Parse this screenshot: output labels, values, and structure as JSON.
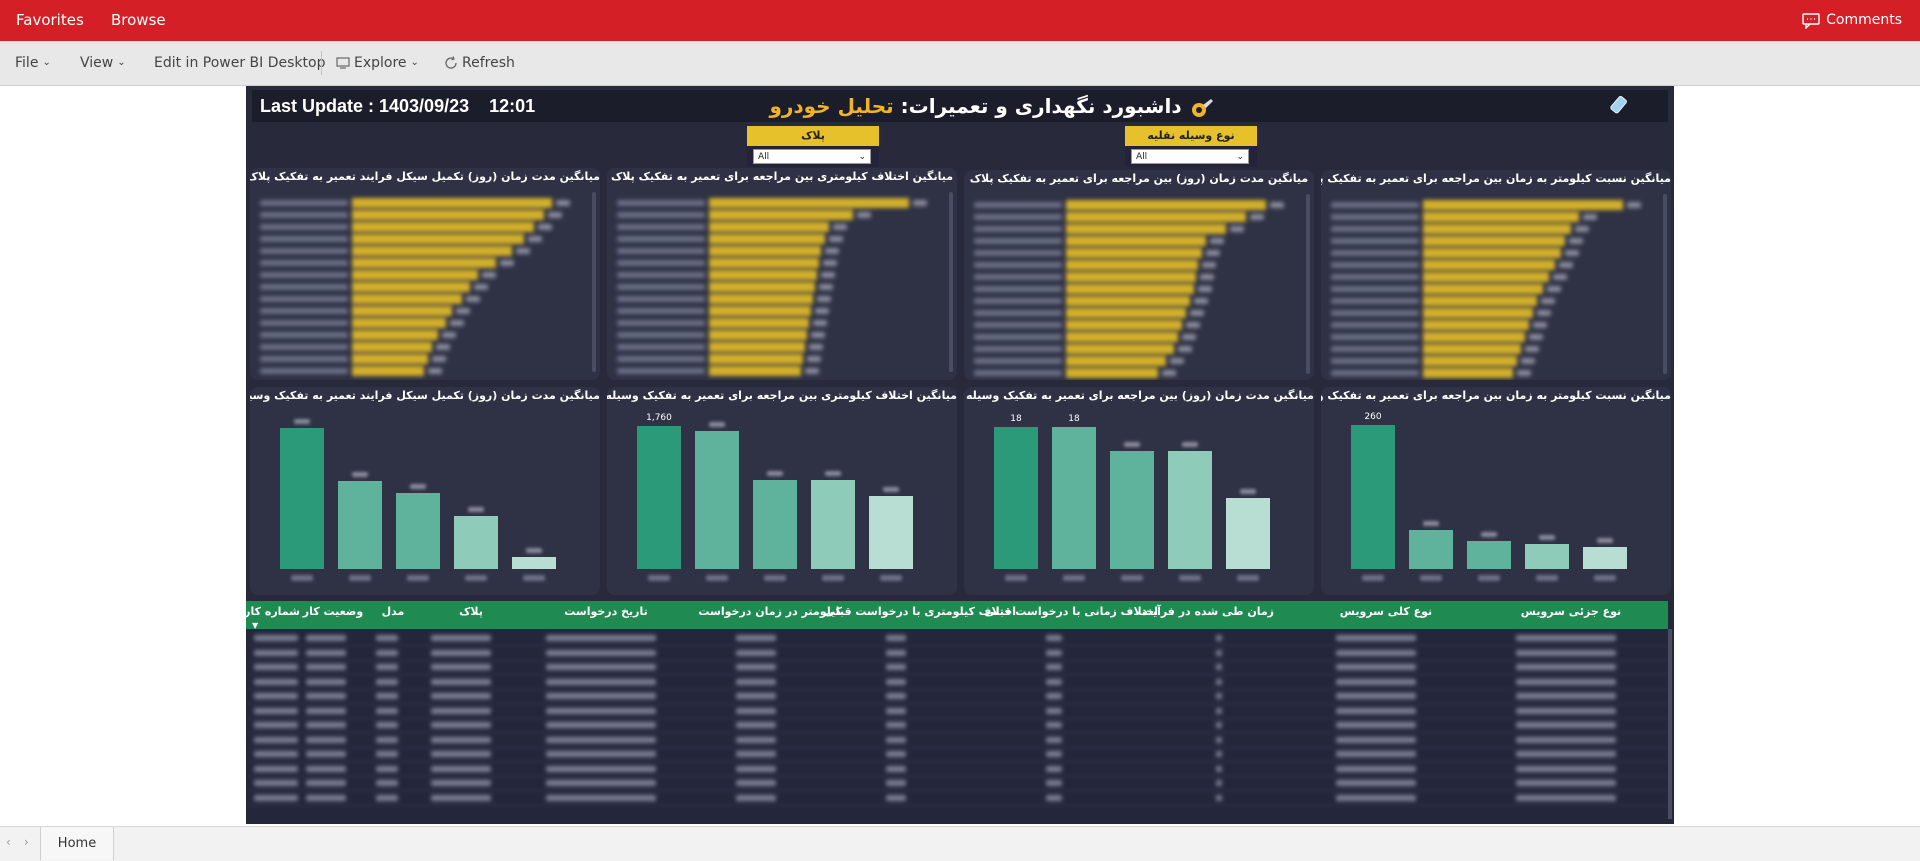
{
  "topbar": {
    "favorites": "Favorites",
    "browse": "Browse",
    "comments": "Comments"
  },
  "toolbar": {
    "file": "File",
    "view": "View",
    "edit_desktop": "Edit in Power BI Desktop",
    "explore": "Explore",
    "refresh": "Refresh"
  },
  "report": {
    "last_update_label": "Last Update : 1403/09/23",
    "last_update_time": "12:01",
    "title_main": "داشبورد نگهداری و تعمیرات:",
    "title_accent": "تحلیل خودرو",
    "slicers": [
      {
        "title": "پلاک",
        "value": "All"
      },
      {
        "title": "نوع وسیله نقلیه",
        "value": "All"
      }
    ],
    "top_panels": [
      "میانگین مدت زمان (روز) تکمیل سیکل فرایند تعمیر به تفکیک پلاک",
      "میانگین اختلاف کیلومتری بین مراجعه برای تعمیر به تفکیک پلاک",
      "میانگین مدت زمان (روز) بین مراجعه برای تعمیر به تفکیک پلاک",
      "میانگین نسبت کیلومتر به زمان بین مراجعه برای تعمیر به تفکیک پلاک"
    ],
    "bottom_panels": [
      "میانگین مدت زمان (روز) تکمیل سیکل فرایند تعمیر به تفکیک وسیله نقلیه",
      "میانگین اختلاف کیلومتری بین مراجعه برای تعمیر به تفکیک وسیله نقلیه",
      "میانگین مدت زمان (روز) بین مراجعه برای تعمیر به تفکیک وسیله نقلیه",
      "میانگین نسبت کیلومتر به زمان بین مراجعه برای تعمیر به تفکیک وسیله نقلیه"
    ],
    "colors": {
      "bar_gold": "#d4b12a",
      "green1": "#2a9a78",
      "green2": "#5fb29b",
      "green3": "#8fcbb9",
      "green4": "#b8ddd2",
      "header_green": "#1f8a52"
    }
  },
  "table": {
    "columns": [
      "شماره کار",
      "وضعیت کار",
      "مدل",
      "پلاک",
      "تاریخ درخواست",
      "کیلومتر در زمان درخواست",
      "اختلاف کیلومتری با درخواست قبلی",
      "اختلاف زمانی با درخواست قبلی",
      "زمان طی شده در فرآیند",
      "نوع کلی سرویس",
      "نوع جزئی سرویس"
    ]
  },
  "chart_data": [
    {
      "type": "bar",
      "title": "میانگین مدت زمان (روز) تکمیل سیکل فرایند تعمیر به تفکیک پلاک",
      "orientation": "horizontal",
      "values": [
        100,
        96,
        91,
        86,
        80,
        72,
        63,
        59,
        55,
        50,
        47,
        43,
        40,
        38,
        36
      ],
      "xlim": [
        0,
        100
      ]
    },
    {
      "type": "bar",
      "title": "میانگین اختلاف کیلومتری بین مراجعه برای تعمیر به تفکیک پلاک",
      "orientation": "horizontal",
      "values": [
        100,
        72,
        60,
        58,
        56,
        55,
        54,
        53,
        52,
        51,
        50,
        49,
        48,
        47,
        46
      ],
      "xlim": [
        0,
        100
      ]
    },
    {
      "type": "bar",
      "title": "میانگین مدت زمان (روز) بین مراجعه برای تعمیر به تفکیک پلاک",
      "orientation": "horizontal",
      "values": [
        100,
        90,
        80,
        70,
        68,
        66,
        65,
        64,
        62,
        60,
        58,
        56,
        54,
        50,
        46
      ],
      "xlim": [
        0,
        100
      ]
    },
    {
      "type": "bar",
      "title": "میانگین نسبت کیلومتر به زمان بین مراجعه برای تعمیر به تفکیک پلاک",
      "orientation": "horizontal",
      "values": [
        100,
        78,
        74,
        71,
        69,
        66,
        63,
        60,
        57,
        55,
        53,
        51,
        49,
        47,
        45
      ],
      "xlim": [
        0,
        100
      ]
    },
    {
      "type": "bar",
      "title": "میانگین مدت زمان (روز) تکمیل سیکل فرایند تعمیر به تفکیک وسیله نقلیه",
      "values": [
        61,
        38,
        33,
        23,
        5
      ],
      "ylim": [
        0,
        65
      ]
    },
    {
      "type": "bar",
      "title": "میانگین اختلاف کیلومتری بین مراجعه برای تعمیر به تفکیک وسیله نقلیه",
      "values": [
        1760,
        1700,
        1100,
        1100,
        900
      ],
      "data_labels": [
        "1,760",
        "",
        "",
        "",
        ""
      ],
      "ylim": [
        0,
        1850
      ]
    },
    {
      "type": "bar",
      "title": "میانگین مدت زمان (روز) بین مراجعه برای تعمیر به تفکیک وسیله نقلیه",
      "values": [
        18,
        18,
        15,
        15,
        9
      ],
      "data_labels": [
        "18",
        "18",
        "",
        "",
        ""
      ],
      "ylim": [
        0,
        19
      ]
    },
    {
      "type": "bar",
      "title": "میانگین نسبت کیلومتر به زمان بین مراجعه برای تعمیر به تفکیک وسیله نقلیه",
      "values": [
        260,
        70,
        50,
        45,
        40
      ],
      "data_labels": [
        "260",
        "",
        "",
        "",
        ""
      ],
      "ylim": [
        0,
        270
      ]
    }
  ]
}
